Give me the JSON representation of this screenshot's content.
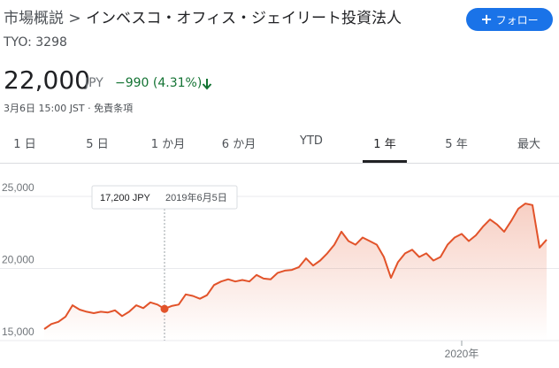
{
  "header": {
    "breadcrumb_root": "市場概説",
    "separator": ">",
    "company": "インベスコ・オフィス・ジェイリート投資法人",
    "follow_button": "フォロー",
    "ticker": "TYO: 3298"
  },
  "quote": {
    "price": "22,000",
    "currency": "JPY",
    "change": "−990 (4.31%)",
    "timestamp": "3月6日 15:00 JST",
    "dot": "·",
    "disclaimer": "免責条項"
  },
  "tabs": [
    {
      "label": "1 日",
      "selected": false
    },
    {
      "label": "5 日",
      "selected": false
    },
    {
      "label": "1 か月",
      "selected": false
    },
    {
      "label": "6 か月",
      "selected": false
    },
    {
      "label": "YTD",
      "selected": false
    },
    {
      "label": "1 年",
      "selected": true
    },
    {
      "label": "5 年",
      "selected": false
    },
    {
      "label": "最大",
      "selected": false
    }
  ],
  "chart_data": {
    "type": "line",
    "color": "#e2532a",
    "fill": true,
    "grid": true,
    "categories": [
      null,
      null,
      null,
      null,
      null,
      null,
      null,
      null,
      null,
      null,
      null,
      null,
      null,
      null,
      null,
      null,
      null,
      null,
      null,
      null,
      null,
      null,
      null,
      null,
      null,
      null,
      null,
      null,
      null,
      null,
      null,
      null,
      null,
      null,
      null,
      null,
      null,
      null,
      null,
      null,
      null,
      null,
      null,
      null,
      null,
      null,
      null,
      null,
      null,
      null,
      null,
      null,
      null,
      null,
      null,
      null,
      null,
      null,
      null,
      "2020年",
      null,
      null,
      null,
      null,
      null,
      null,
      null,
      null,
      null,
      null,
      null,
      null
    ],
    "values": [
      15800,
      16150,
      16300,
      16650,
      17450,
      17150,
      17000,
      16900,
      17000,
      16950,
      17100,
      16700,
      17000,
      17450,
      17250,
      17650,
      17500,
      17200,
      17400,
      17500,
      18200,
      18100,
      17900,
      18150,
      18850,
      19100,
      19250,
      19100,
      19200,
      19100,
      19550,
      19300,
      19250,
      19700,
      19850,
      19900,
      20100,
      20700,
      20200,
      20550,
      21050,
      21650,
      22550,
      21900,
      21650,
      22150,
      21900,
      21650,
      20800,
      19350,
      20450,
      21050,
      21300,
      20800,
      21050,
      20550,
      20800,
      21650,
      22150,
      22400,
      21900,
      22300,
      22900,
      23400,
      23050,
      22550,
      23300,
      24150,
      24500,
      24400,
      21450,
      22000
    ],
    "ylim": [
      15000,
      26000
    ],
    "yticks": [
      {
        "value": 15000,
        "label": "15,000"
      },
      {
        "value": 20000,
        "label": "20,000"
      },
      {
        "value": 25000,
        "label": "25,000"
      }
    ],
    "tooltip": {
      "index": 17,
      "value": 17200,
      "value_label": "17,200 JPY",
      "date": "2019年6月5日"
    }
  }
}
